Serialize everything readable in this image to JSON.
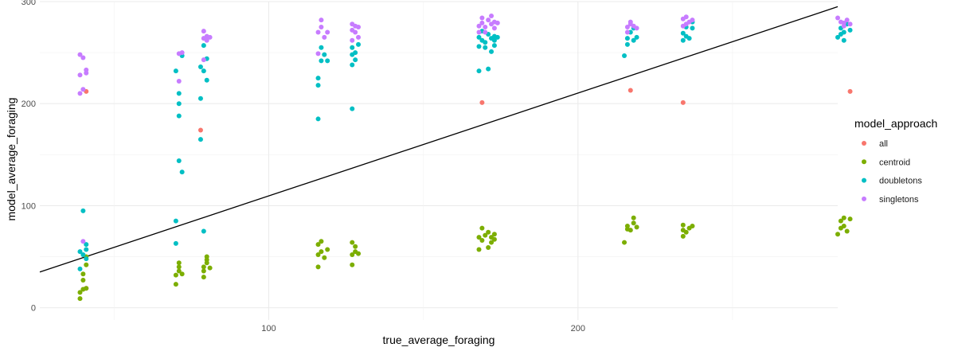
{
  "chart_data": {
    "type": "scatter",
    "title": "",
    "xlabel": "true_average_foraging",
    "ylabel": "model_average_foraging",
    "xlim": [
      26,
      284
    ],
    "ylim": [
      -12,
      300
    ],
    "x_ticks": [
      100,
      200
    ],
    "y_ticks": [
      0,
      100,
      200,
      300
    ],
    "grid": true,
    "legend": {
      "title": "model_approach",
      "position": "right"
    },
    "reference_line": {
      "x": [
        26,
        284
      ],
      "y": [
        35,
        295
      ]
    },
    "series": [
      {
        "name": "all",
        "color": "#F8766D",
        "points": [
          [
            41,
            19
          ],
          [
            41,
            212
          ],
          [
            78,
            174
          ],
          [
            169,
            201
          ],
          [
            217,
            213
          ],
          [
            234,
            201
          ],
          [
            288,
            212
          ]
        ]
      },
      {
        "name": "centroid",
        "color": "#7CAE00",
        "points": [
          [
            39,
            9
          ],
          [
            39,
            15
          ],
          [
            40,
            18
          ],
          [
            40,
            27
          ],
          [
            40,
            33
          ],
          [
            41,
            19
          ],
          [
            41,
            42
          ],
          [
            41,
            50
          ],
          [
            70,
            23
          ],
          [
            70,
            32
          ],
          [
            71,
            36
          ],
          [
            71,
            40
          ],
          [
            71,
            44
          ],
          [
            72,
            33
          ],
          [
            79,
            30
          ],
          [
            79,
            36
          ],
          [
            79,
            40
          ],
          [
            80,
            44
          ],
          [
            80,
            47
          ],
          [
            80,
            50
          ],
          [
            81,
            39
          ],
          [
            116,
            40
          ],
          [
            116,
            52
          ],
          [
            116,
            62
          ],
          [
            117,
            55
          ],
          [
            117,
            65
          ],
          [
            118,
            49
          ],
          [
            119,
            57
          ],
          [
            127,
            42
          ],
          [
            127,
            52
          ],
          [
            127,
            64
          ],
          [
            128,
            55
          ],
          [
            128,
            60
          ],
          [
            129,
            53
          ],
          [
            168,
            57
          ],
          [
            168,
            69
          ],
          [
            169,
            66
          ],
          [
            169,
            78
          ],
          [
            170,
            71
          ],
          [
            171,
            59
          ],
          [
            171,
            74
          ],
          [
            172,
            64
          ],
          [
            172,
            69
          ],
          [
            173,
            67
          ],
          [
            173,
            72
          ],
          [
            215,
            64
          ],
          [
            216,
            77
          ],
          [
            216,
            80
          ],
          [
            217,
            76
          ],
          [
            218,
            83
          ],
          [
            218,
            88
          ],
          [
            219,
            79
          ],
          [
            234,
            70
          ],
          [
            234,
            76
          ],
          [
            234,
            81
          ],
          [
            235,
            74
          ],
          [
            236,
            78
          ],
          [
            237,
            80
          ],
          [
            284,
            72
          ],
          [
            285,
            78
          ],
          [
            285,
            85
          ],
          [
            286,
            80
          ],
          [
            286,
            88
          ],
          [
            287,
            75
          ],
          [
            288,
            87
          ]
        ]
      },
      {
        "name": "doubletons",
        "color": "#00BFC4",
        "points": [
          [
            39,
            38
          ],
          [
            39,
            55
          ],
          [
            40,
            95
          ],
          [
            40,
            52
          ],
          [
            41,
            48
          ],
          [
            41,
            57
          ],
          [
            41,
            62
          ],
          [
            70,
            232
          ],
          [
            70,
            85
          ],
          [
            70,
            63
          ],
          [
            71,
            188
          ],
          [
            71,
            144
          ],
          [
            71,
            200
          ],
          [
            71,
            210
          ],
          [
            72,
            133
          ],
          [
            72,
            247
          ],
          [
            78,
            165
          ],
          [
            78,
            205
          ],
          [
            78,
            236
          ],
          [
            79,
            232
          ],
          [
            79,
            257
          ],
          [
            79,
            75
          ],
          [
            80,
            244
          ],
          [
            80,
            223
          ],
          [
            116,
            185
          ],
          [
            116,
            218
          ],
          [
            116,
            225
          ],
          [
            117,
            242
          ],
          [
            117,
            255
          ],
          [
            118,
            248
          ],
          [
            119,
            242
          ],
          [
            127,
            195
          ],
          [
            127,
            238
          ],
          [
            127,
            248
          ],
          [
            127,
            255
          ],
          [
            128,
            243
          ],
          [
            128,
            250
          ],
          [
            129,
            258
          ],
          [
            168,
            232
          ],
          [
            168,
            256
          ],
          [
            168,
            265
          ],
          [
            169,
            262
          ],
          [
            169,
            271
          ],
          [
            170,
            260
          ],
          [
            170,
            255
          ],
          [
            171,
            268
          ],
          [
            171,
            234
          ],
          [
            172,
            264
          ],
          [
            172,
            251
          ],
          [
            173,
            262
          ],
          [
            173,
            257
          ],
          [
            173,
            266
          ],
          [
            174,
            265
          ],
          [
            215,
            247
          ],
          [
            216,
            258
          ],
          [
            216,
            264
          ],
          [
            217,
            270
          ],
          [
            218,
            262
          ],
          [
            218,
            274
          ],
          [
            219,
            265
          ],
          [
            234,
            262
          ],
          [
            234,
            269
          ],
          [
            235,
            275
          ],
          [
            235,
            266
          ],
          [
            236,
            264
          ],
          [
            237,
            280
          ],
          [
            237,
            274
          ],
          [
            284,
            265
          ],
          [
            285,
            268
          ],
          [
            285,
            274
          ],
          [
            286,
            262
          ],
          [
            286,
            270
          ],
          [
            287,
            278
          ],
          [
            288,
            272
          ]
        ]
      },
      {
        "name": "singletons",
        "color": "#C77CFF",
        "points": [
          [
            39,
            210
          ],
          [
            39,
            228
          ],
          [
            39,
            248
          ],
          [
            40,
            214
          ],
          [
            40,
            245
          ],
          [
            41,
            230
          ],
          [
            41,
            233
          ],
          [
            40,
            65
          ],
          [
            71,
            222
          ],
          [
            71,
            249
          ],
          [
            72,
            250
          ],
          [
            79,
            243
          ],
          [
            79,
            264
          ],
          [
            79,
            271
          ],
          [
            80,
            266
          ],
          [
            80,
            262
          ],
          [
            81,
            265
          ],
          [
            116,
            249
          ],
          [
            116,
            270
          ],
          [
            117,
            275
          ],
          [
            117,
            282
          ],
          [
            118,
            265
          ],
          [
            119,
            270
          ],
          [
            127,
            262
          ],
          [
            127,
            272
          ],
          [
            127,
            278
          ],
          [
            128,
            276
          ],
          [
            128,
            270
          ],
          [
            129,
            275
          ],
          [
            129,
            265
          ],
          [
            168,
            270
          ],
          [
            168,
            276
          ],
          [
            169,
            279
          ],
          [
            169,
            284
          ],
          [
            170,
            275
          ],
          [
            170,
            270
          ],
          [
            171,
            282
          ],
          [
            172,
            278
          ],
          [
            172,
            286
          ],
          [
            173,
            274
          ],
          [
            173,
            280
          ],
          [
            174,
            279
          ],
          [
            216,
            275
          ],
          [
            216,
            270
          ],
          [
            217,
            280
          ],
          [
            217,
            278
          ],
          [
            218,
            276
          ],
          [
            219,
            274
          ],
          [
            234,
            276
          ],
          [
            234,
            283
          ],
          [
            235,
            285
          ],
          [
            235,
            278
          ],
          [
            236,
            280
          ],
          [
            237,
            282
          ],
          [
            284,
            284
          ],
          [
            285,
            280
          ],
          [
            286,
            279
          ],
          [
            286,
            276
          ],
          [
            287,
            282
          ],
          [
            288,
            278
          ]
        ]
      }
    ]
  }
}
